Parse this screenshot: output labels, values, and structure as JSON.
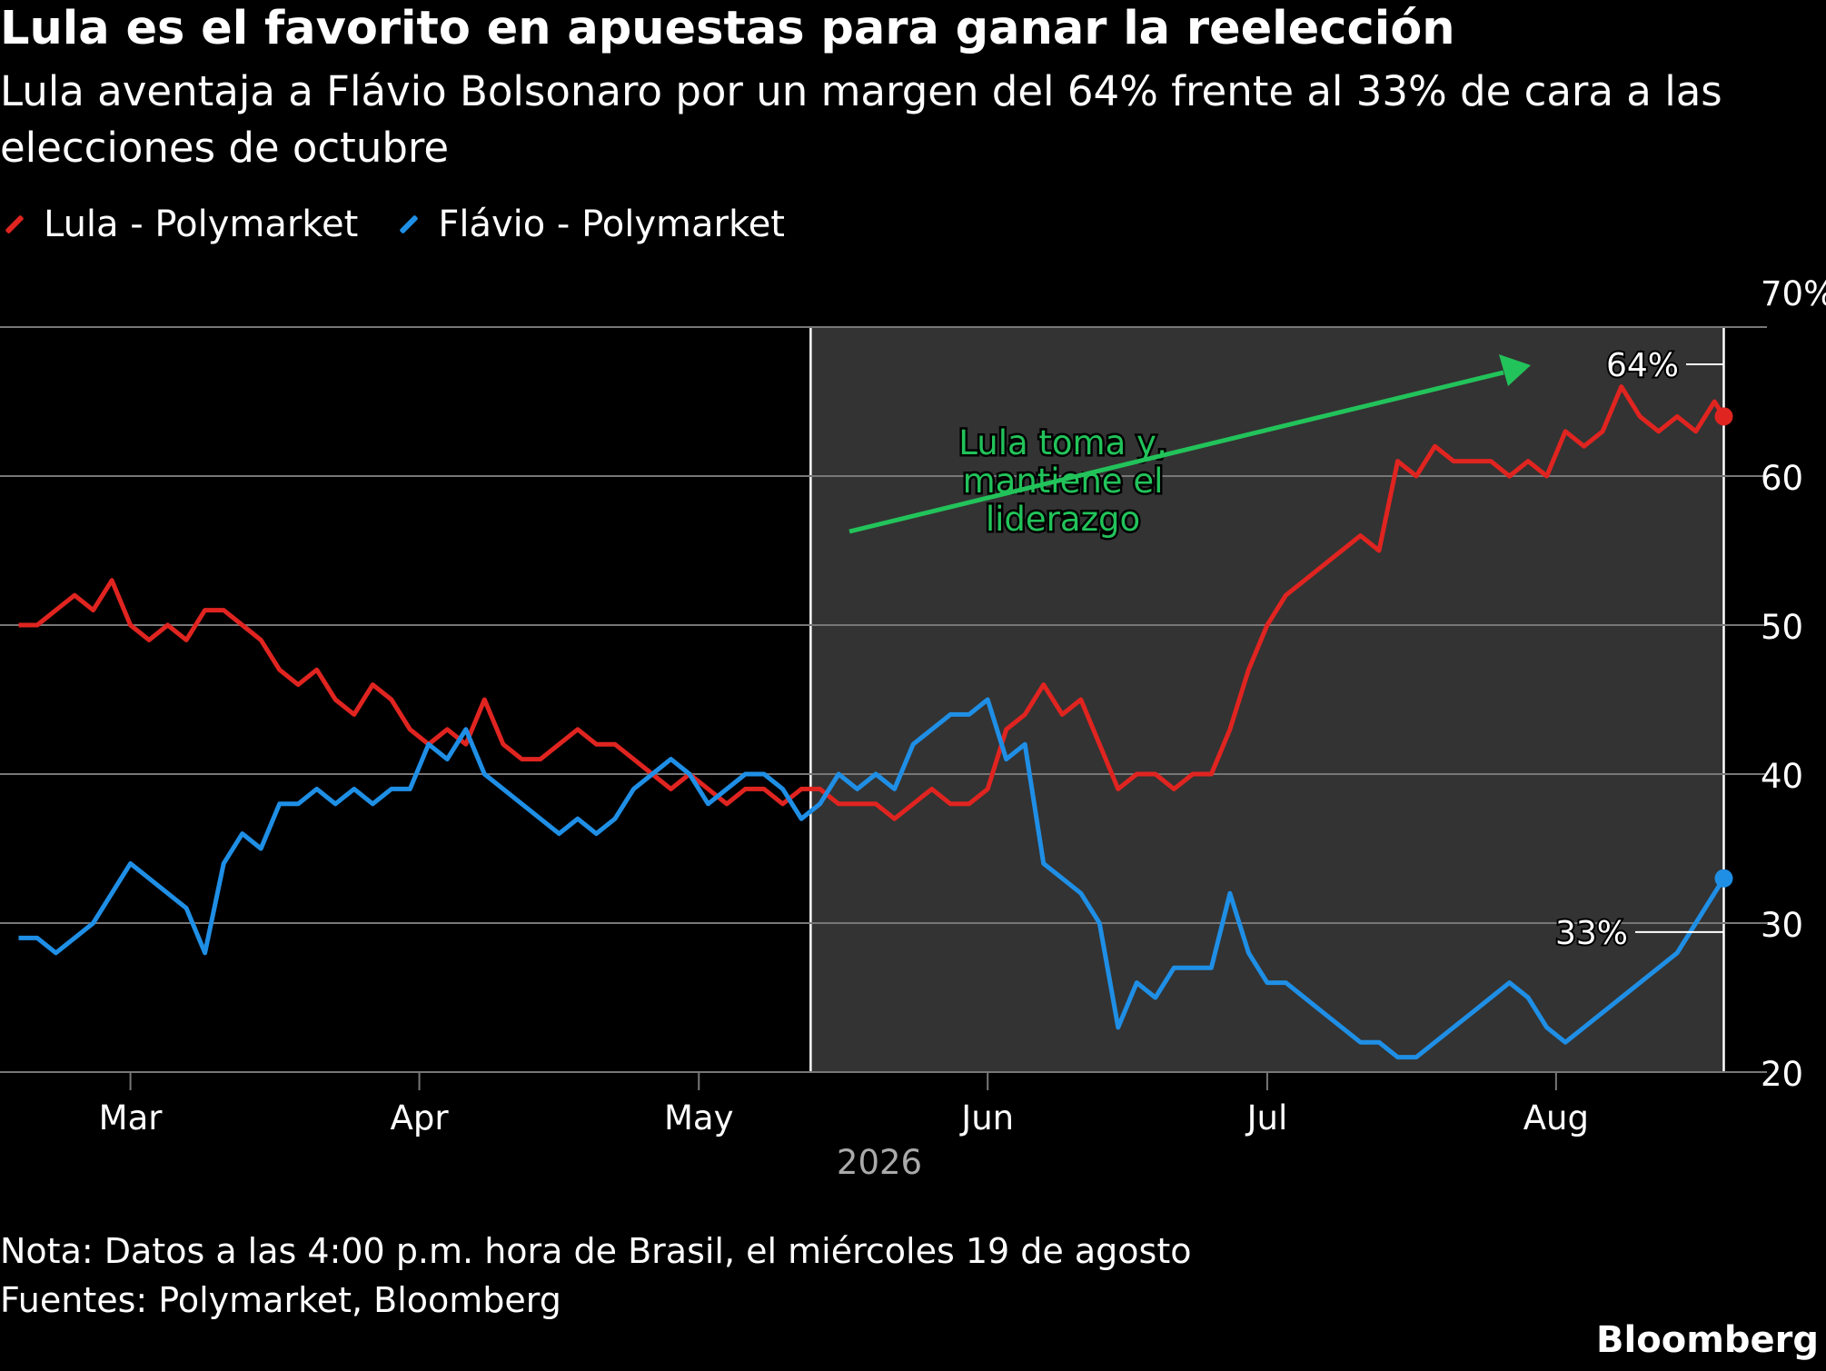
{
  "title": "Lula es el favorito en apuestas para ganar la reelección",
  "subtitle": "Lula aventaja a Flávio Bolsonaro por un margen del 64% frente al 33% de cara a las elecciones de octubre",
  "note": "Nota: Datos a las 4:00 p.m. hora de Brasil, el miércoles 19 de agosto",
  "sources": "Fuentes: Polymarket, Bloomberg",
  "brand": "Bloomberg",
  "colors": {
    "lula": "#e02420",
    "flavio": "#1f8fe6",
    "annotation": "#22c35a",
    "shade": "#333333",
    "grid": "#777777"
  },
  "chart_data": {
    "type": "line",
    "title": "Lula es el favorito en apuestas para ganar la reelección",
    "xlabel": "2026",
    "ylabel": "",
    "ylim": [
      20,
      70
    ],
    "y_ticks": [
      {
        "value": 70,
        "label": "70%"
      },
      {
        "value": 60,
        "label": "60"
      },
      {
        "value": 50,
        "label": "50"
      },
      {
        "value": 40,
        "label": "40"
      },
      {
        "value": 30,
        "label": "30"
      },
      {
        "value": 20,
        "label": "20"
      }
    ],
    "x_range": [
      "2026-02-15",
      "2026-08-21"
    ],
    "x_ticks": [
      {
        "date": "2026-03-01",
        "label": "Mar"
      },
      {
        "date": "2026-04-01",
        "label": "Apr"
      },
      {
        "date": "2026-05-01",
        "label": "May"
      },
      {
        "date": "2026-06-01",
        "label": "Jun"
      },
      {
        "date": "2026-07-01",
        "label": "Jul"
      },
      {
        "date": "2026-08-01",
        "label": "Aug"
      }
    ],
    "shaded_range": [
      "2026-05-13",
      "2026-08-19"
    ],
    "grid": true,
    "legend_position": "top-left",
    "series": [
      {
        "name": "Lula - Polymarket",
        "color": "#e02420",
        "end_label": "64%",
        "points": [
          [
            "2026-02-17",
            50
          ],
          [
            "2026-02-19",
            50
          ],
          [
            "2026-02-21",
            51
          ],
          [
            "2026-02-23",
            52
          ],
          [
            "2026-02-25",
            51
          ],
          [
            "2026-02-27",
            53
          ],
          [
            "2026-03-01",
            50
          ],
          [
            "2026-03-03",
            49
          ],
          [
            "2026-03-05",
            50
          ],
          [
            "2026-03-07",
            49
          ],
          [
            "2026-03-09",
            51
          ],
          [
            "2026-03-11",
            51
          ],
          [
            "2026-03-13",
            50
          ],
          [
            "2026-03-15",
            49
          ],
          [
            "2026-03-17",
            47
          ],
          [
            "2026-03-19",
            46
          ],
          [
            "2026-03-21",
            47
          ],
          [
            "2026-03-23",
            45
          ],
          [
            "2026-03-25",
            44
          ],
          [
            "2026-03-27",
            46
          ],
          [
            "2026-03-29",
            45
          ],
          [
            "2026-03-31",
            43
          ],
          [
            "2026-04-02",
            42
          ],
          [
            "2026-04-04",
            43
          ],
          [
            "2026-04-06",
            42
          ],
          [
            "2026-04-08",
            45
          ],
          [
            "2026-04-10",
            42
          ],
          [
            "2026-04-12",
            41
          ],
          [
            "2026-04-14",
            41
          ],
          [
            "2026-04-16",
            42
          ],
          [
            "2026-04-18",
            43
          ],
          [
            "2026-04-20",
            42
          ],
          [
            "2026-04-22",
            42
          ],
          [
            "2026-04-24",
            41
          ],
          [
            "2026-04-26",
            40
          ],
          [
            "2026-04-28",
            39
          ],
          [
            "2026-04-30",
            40
          ],
          [
            "2026-05-02",
            39
          ],
          [
            "2026-05-04",
            38
          ],
          [
            "2026-05-06",
            39
          ],
          [
            "2026-05-08",
            39
          ],
          [
            "2026-05-10",
            38
          ],
          [
            "2026-05-12",
            39
          ],
          [
            "2026-05-14",
            39
          ],
          [
            "2026-05-16",
            38
          ],
          [
            "2026-05-18",
            38
          ],
          [
            "2026-05-20",
            38
          ],
          [
            "2026-05-22",
            37
          ],
          [
            "2026-05-24",
            38
          ],
          [
            "2026-05-26",
            39
          ],
          [
            "2026-05-28",
            38
          ],
          [
            "2026-05-30",
            38
          ],
          [
            "2026-06-01",
            39
          ],
          [
            "2026-06-03",
            43
          ],
          [
            "2026-06-05",
            44
          ],
          [
            "2026-06-07",
            46
          ],
          [
            "2026-06-09",
            44
          ],
          [
            "2026-06-11",
            45
          ],
          [
            "2026-06-13",
            42
          ],
          [
            "2026-06-15",
            39
          ],
          [
            "2026-06-17",
            40
          ],
          [
            "2026-06-19",
            40
          ],
          [
            "2026-06-21",
            39
          ],
          [
            "2026-06-23",
            40
          ],
          [
            "2026-06-25",
            40
          ],
          [
            "2026-06-27",
            43
          ],
          [
            "2026-06-29",
            47
          ],
          [
            "2026-07-01",
            50
          ],
          [
            "2026-07-03",
            52
          ],
          [
            "2026-07-05",
            53
          ],
          [
            "2026-07-07",
            54
          ],
          [
            "2026-07-09",
            55
          ],
          [
            "2026-07-11",
            56
          ],
          [
            "2026-07-13",
            55
          ],
          [
            "2026-07-15",
            61
          ],
          [
            "2026-07-17",
            60
          ],
          [
            "2026-07-19",
            62
          ],
          [
            "2026-07-21",
            61
          ],
          [
            "2026-07-23",
            61
          ],
          [
            "2026-07-25",
            61
          ],
          [
            "2026-07-27",
            60
          ],
          [
            "2026-07-29",
            61
          ],
          [
            "2026-07-31",
            60
          ],
          [
            "2026-08-02",
            63
          ],
          [
            "2026-08-04",
            62
          ],
          [
            "2026-08-06",
            63
          ],
          [
            "2026-08-08",
            66
          ],
          [
            "2026-08-10",
            64
          ],
          [
            "2026-08-12",
            63
          ],
          [
            "2026-08-14",
            64
          ],
          [
            "2026-08-16",
            63
          ],
          [
            "2026-08-18",
            65
          ],
          [
            "2026-08-19",
            64
          ]
        ]
      },
      {
        "name": "Flávio - Polymarket",
        "color": "#1f8fe6",
        "end_label": "33%",
        "points": [
          [
            "2026-02-17",
            29
          ],
          [
            "2026-02-19",
            29
          ],
          [
            "2026-02-21",
            28
          ],
          [
            "2026-02-23",
            29
          ],
          [
            "2026-02-25",
            30
          ],
          [
            "2026-02-27",
            32
          ],
          [
            "2026-03-01",
            34
          ],
          [
            "2026-03-03",
            33
          ],
          [
            "2026-03-05",
            32
          ],
          [
            "2026-03-07",
            31
          ],
          [
            "2026-03-09",
            28
          ],
          [
            "2026-03-11",
            34
          ],
          [
            "2026-03-13",
            36
          ],
          [
            "2026-03-15",
            35
          ],
          [
            "2026-03-17",
            38
          ],
          [
            "2026-03-19",
            38
          ],
          [
            "2026-03-21",
            39
          ],
          [
            "2026-03-23",
            38
          ],
          [
            "2026-03-25",
            39
          ],
          [
            "2026-03-27",
            38
          ],
          [
            "2026-03-29",
            39
          ],
          [
            "2026-03-31",
            39
          ],
          [
            "2026-04-02",
            42
          ],
          [
            "2026-04-04",
            41
          ],
          [
            "2026-04-06",
            43
          ],
          [
            "2026-04-08",
            40
          ],
          [
            "2026-04-10",
            39
          ],
          [
            "2026-04-12",
            38
          ],
          [
            "2026-04-14",
            37
          ],
          [
            "2026-04-16",
            36
          ],
          [
            "2026-04-18",
            37
          ],
          [
            "2026-04-20",
            36
          ],
          [
            "2026-04-22",
            37
          ],
          [
            "2026-04-24",
            39
          ],
          [
            "2026-04-26",
            40
          ],
          [
            "2026-04-28",
            41
          ],
          [
            "2026-04-30",
            40
          ],
          [
            "2026-05-02",
            38
          ],
          [
            "2026-05-04",
            39
          ],
          [
            "2026-05-06",
            40
          ],
          [
            "2026-05-08",
            40
          ],
          [
            "2026-05-10",
            39
          ],
          [
            "2026-05-12",
            37
          ],
          [
            "2026-05-14",
            38
          ],
          [
            "2026-05-16",
            40
          ],
          [
            "2026-05-18",
            39
          ],
          [
            "2026-05-20",
            40
          ],
          [
            "2026-05-22",
            39
          ],
          [
            "2026-05-24",
            42
          ],
          [
            "2026-05-26",
            43
          ],
          [
            "2026-05-28",
            44
          ],
          [
            "2026-05-30",
            44
          ],
          [
            "2026-06-01",
            45
          ],
          [
            "2026-06-03",
            41
          ],
          [
            "2026-06-05",
            42
          ],
          [
            "2026-06-07",
            34
          ],
          [
            "2026-06-09",
            33
          ],
          [
            "2026-06-11",
            32
          ],
          [
            "2026-06-13",
            30
          ],
          [
            "2026-06-15",
            23
          ],
          [
            "2026-06-17",
            26
          ],
          [
            "2026-06-19",
            25
          ],
          [
            "2026-06-21",
            27
          ],
          [
            "2026-06-23",
            27
          ],
          [
            "2026-06-25",
            27
          ],
          [
            "2026-06-27",
            32
          ],
          [
            "2026-06-29",
            28
          ],
          [
            "2026-07-01",
            26
          ],
          [
            "2026-07-03",
            26
          ],
          [
            "2026-07-05",
            25
          ],
          [
            "2026-07-07",
            24
          ],
          [
            "2026-07-09",
            23
          ],
          [
            "2026-07-11",
            22
          ],
          [
            "2026-07-13",
            22
          ],
          [
            "2026-07-15",
            21
          ],
          [
            "2026-07-17",
            21
          ],
          [
            "2026-07-19",
            22
          ],
          [
            "2026-07-21",
            23
          ],
          [
            "2026-07-23",
            24
          ],
          [
            "2026-07-25",
            25
          ],
          [
            "2026-07-27",
            26
          ],
          [
            "2026-07-29",
            25
          ],
          [
            "2026-07-31",
            23
          ],
          [
            "2026-08-02",
            22
          ],
          [
            "2026-08-04",
            23
          ],
          [
            "2026-08-06",
            24
          ],
          [
            "2026-08-08",
            25
          ],
          [
            "2026-08-10",
            26
          ],
          [
            "2026-08-12",
            27
          ],
          [
            "2026-08-14",
            28
          ],
          [
            "2026-08-16",
            30
          ],
          [
            "2026-08-18",
            32
          ],
          [
            "2026-08-19",
            33
          ]
        ]
      }
    ],
    "annotations": [
      {
        "text": "Lula toma y, mantiene el liderazgo",
        "lines": [
          "Lula toma y,",
          "mantiene el",
          "liderazgo"
        ],
        "color": "#22c35a",
        "arrow": "up-right"
      }
    ]
  }
}
